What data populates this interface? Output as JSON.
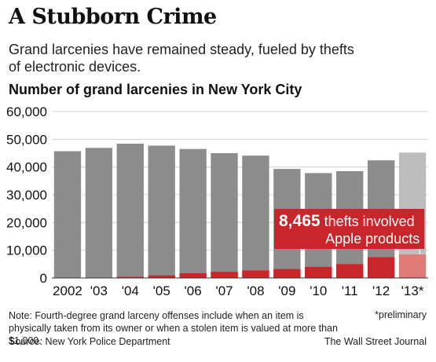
{
  "header": {
    "title": "A Stubborn Crime",
    "subtitle": "Grand larcenies have remained steady, fueled by thefts of electronic devices."
  },
  "chart_heading": "Number of grand larcenies in New York City",
  "chart_data": {
    "type": "bar",
    "categories": [
      "2002",
      "'03",
      "'04",
      "'05",
      "'06",
      "'07",
      "'08",
      "'09",
      "'10",
      "'11",
      "'12",
      "'13*"
    ],
    "series": [
      {
        "values": [
          45700,
          46900,
          48400,
          47700,
          46500,
          45000,
          44100,
          39300,
          37800,
          38500,
          42400,
          45200
        ]
      },
      {
        "values": [
          0,
          0,
          400,
          900,
          1700,
          2200,
          2700,
          3200,
          4000,
          5000,
          7500,
          8465
        ]
      }
    ],
    "ylim": [
      0,
      60000
    ],
    "yticks": [
      "60,000",
      "50,000",
      "40,000",
      "30,000",
      "20,000",
      "10,000",
      "0"
    ],
    "ytick_values": [
      60000,
      50000,
      40000,
      30000,
      20000,
      10000,
      0
    ],
    "grid": true,
    "preliminary_index": 11,
    "annotation": {
      "number": "8,465",
      "text_line1": " thefts involved",
      "text_line2": "Apple products"
    },
    "colors": {
      "total": "#8c8c8c",
      "total_preliminary": "#bdbdbd",
      "apple": "#c8262b",
      "apple_preliminary": "#e07a76",
      "grid": "#d0d0d0",
      "callout": "#c8262b"
    }
  },
  "footer": {
    "note": "Note: Fourth-degree grand larceny offenses include when an item is physically taken from its owner or when a stolen item is valued at more than $1,000.",
    "preliminary": "*preliminary",
    "source": "Source: New York Police Department",
    "credit": "The Wall Street Journal"
  }
}
